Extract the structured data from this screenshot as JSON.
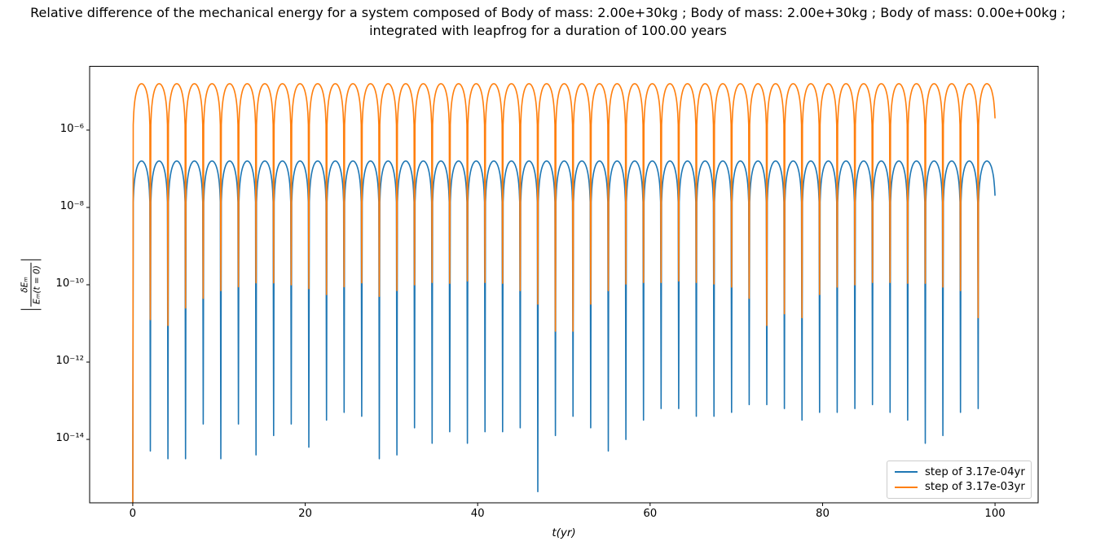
{
  "figure": {
    "title_line1": "Relative difference of the mechanical energy for a system composed of Body of mass: 2.00e+30kg ; Body of mass: 2.00e+30kg ; Body of mass: 0.00e+00kg ;",
    "title_line2": "integrated with leapfrog for a duration of 100.00 years"
  },
  "chart_data": {
    "type": "line",
    "title": "Relative difference of the mechanical energy for a system composed of Body of mass: 2.00e+30kg ; Body of mass: 2.00e+30kg ; Body of mass: 0.00e+00kg ;\nintegrated with leapfrog for a duration of 100.00 years",
    "xlabel": "t(yr)",
    "ylabel": "|δEₘ / Eₘ(t = 0)|",
    "ylabel_parts": {
      "numerator": "δEₘ",
      "denominator": "Eₘ(t = 0)"
    },
    "xlim": [
      -5,
      105
    ],
    "ylog_lim_top": -4.35,
    "ylog_lim_bottom": -15.64,
    "t_max": 100,
    "grid": false,
    "legend_position": "lower right",
    "axis_color": "#000000",
    "x_ticks": [
      {
        "value": 0,
        "label": "0"
      },
      {
        "value": 20,
        "label": "20"
      },
      {
        "value": 40,
        "label": "40"
      },
      {
        "value": 60,
        "label": "60"
      },
      {
        "value": 80,
        "label": "80"
      },
      {
        "value": 100,
        "label": "100"
      }
    ],
    "y_ticks": [
      {
        "log10": -6,
        "label": "10⁻⁶"
      },
      {
        "log10": -8,
        "label": "10⁻⁸"
      },
      {
        "log10": -10,
        "label": "10⁻¹⁰"
      },
      {
        "log10": -12,
        "label": "10⁻¹²"
      },
      {
        "log10": -14,
        "label": "10⁻¹⁴"
      }
    ],
    "series": [
      {
        "name": "step of 3.17e-04yr",
        "color": "#1f77b4",
        "peak_value": 1.6e-07,
        "peak_log10": -6.8,
        "period_yr": 2.0425,
        "waveform": "abs_sine_log",
        "spike_depths_log10": [
          -17,
          -14.3,
          -14.5,
          -14.5,
          -13.6,
          -14.5,
          -13.6,
          -14.4,
          -13.9,
          -13.6,
          -14.2,
          -13.5,
          -13.3,
          -13.4,
          -14.5,
          -14.4,
          -13.7,
          -14.1,
          -13.8,
          -14.1,
          -13.8,
          -13.8,
          -13.7,
          -15.35,
          -13.9,
          -13.4,
          -13.7,
          -14.3,
          -14.0,
          -13.5,
          -13.2,
          -13.2,
          -13.4,
          -13.4,
          -13.3,
          -13.1,
          -13.1,
          -13.2,
          -13.5,
          -13.3,
          -13.3,
          -13.2,
          -13.1,
          -13.3,
          -13.5,
          -14.1,
          -13.9,
          -13.3,
          -13.2
        ]
      },
      {
        "name": "step of 3.17e-03yr",
        "color": "#ff7f0e",
        "peak_value": 1.6e-05,
        "peak_log10": -4.8,
        "period_yr": 2.0425,
        "waveform": "abs_sine_log",
        "spike_depths_log10": [
          -17,
          -10.9,
          -11.05,
          -10.6,
          -10.35,
          -10.15,
          -10.05,
          -9.95,
          -9.95,
          -10.0,
          -10.1,
          -10.25,
          -10.05,
          -9.95,
          -10.3,
          -10.15,
          -10.0,
          -9.94,
          -9.96,
          -9.9,
          -9.94,
          -9.96,
          -10.15,
          -10.5,
          -11.2,
          -11.2,
          -10.5,
          -10.15,
          -9.98,
          -9.94,
          -9.94,
          -9.9,
          -9.94,
          -9.98,
          -10.06,
          -10.35,
          -11.05,
          -10.75,
          -10.85,
          -10.25,
          -10.06,
          -10.0,
          -9.94,
          -9.94,
          -9.96,
          -9.96,
          -10.06,
          -10.15,
          -10.85
        ]
      }
    ]
  }
}
